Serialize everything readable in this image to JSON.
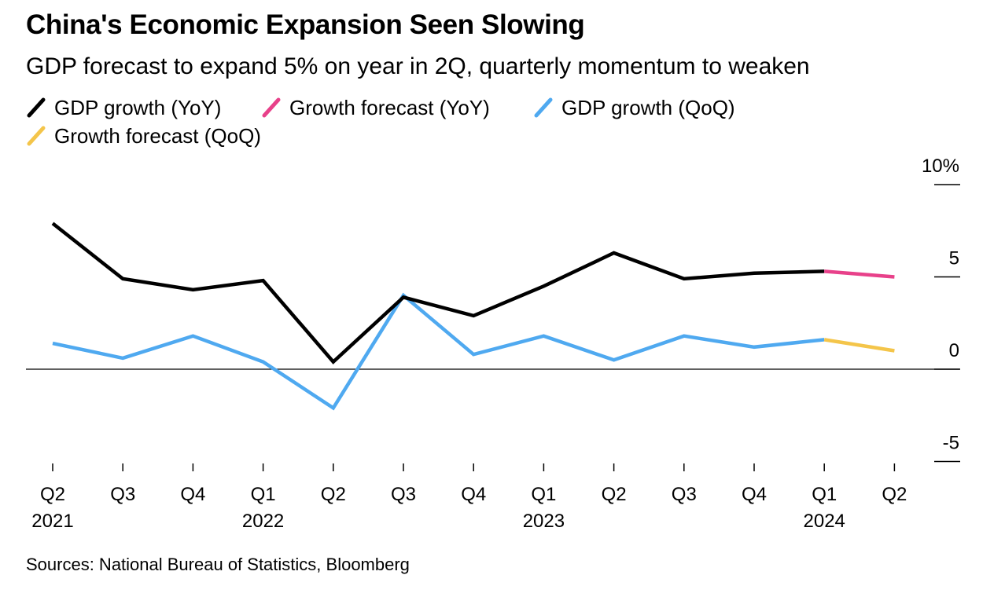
{
  "title": "China's Economic Expansion Seen Slowing",
  "subtitle": "GDP forecast to expand 5% on year in 2Q, quarterly momentum to weaken",
  "legend": [
    {
      "label": "GDP growth (YoY)",
      "color": "#000000"
    },
    {
      "label": "Growth forecast (YoY)",
      "color": "#e8418a"
    },
    {
      "label": "GDP growth (QoQ)",
      "color": "#4fa9f0"
    },
    {
      "label": "Growth forecast (QoQ)",
      "color": "#f4c54a"
    }
  ],
  "source": "Sources: National Bureau of Statistics, Bloomberg",
  "chart_data": {
    "type": "line",
    "categories": [
      "Q2 2021",
      "Q3 2021",
      "Q4 2021",
      "Q1 2022",
      "Q2 2022",
      "Q3 2022",
      "Q4 2022",
      "Q1 2023",
      "Q2 2023",
      "Q3 2023",
      "Q4 2023",
      "Q1 2024",
      "Q2 2024"
    ],
    "x_tick_labels": [
      {
        "quarter": "Q2",
        "year": "2021"
      },
      {
        "quarter": "Q3",
        "year": ""
      },
      {
        "quarter": "Q4",
        "year": ""
      },
      {
        "quarter": "Q1",
        "year": "2022"
      },
      {
        "quarter": "Q2",
        "year": ""
      },
      {
        "quarter": "Q3",
        "year": ""
      },
      {
        "quarter": "Q4",
        "year": ""
      },
      {
        "quarter": "Q1",
        "year": "2023"
      },
      {
        "quarter": "Q2",
        "year": ""
      },
      {
        "quarter": "Q3",
        "year": ""
      },
      {
        "quarter": "Q4",
        "year": ""
      },
      {
        "quarter": "Q1",
        "year": "2024"
      },
      {
        "quarter": "Q2",
        "year": ""
      }
    ],
    "series": [
      {
        "name": "GDP growth (YoY)",
        "color": "#000000",
        "values": [
          7.9,
          4.9,
          4.3,
          4.8,
          0.4,
          3.9,
          2.9,
          4.5,
          6.3,
          4.9,
          5.2,
          5.3,
          null
        ]
      },
      {
        "name": "Growth forecast (YoY)",
        "color": "#e8418a",
        "values": [
          null,
          null,
          null,
          null,
          null,
          null,
          null,
          null,
          null,
          null,
          null,
          5.3,
          5.0
        ]
      },
      {
        "name": "GDP growth (QoQ)",
        "color": "#4fa9f0",
        "values": [
          1.4,
          0.6,
          1.8,
          0.4,
          -2.1,
          4.0,
          0.8,
          1.8,
          0.5,
          1.8,
          1.2,
          1.6,
          null
        ]
      },
      {
        "name": "Growth forecast (QoQ)",
        "color": "#f4c54a",
        "values": [
          null,
          null,
          null,
          null,
          null,
          null,
          null,
          null,
          null,
          null,
          null,
          1.6,
          1.0
        ]
      }
    ],
    "y_ticks": [
      {
        "value": 10,
        "label": "10%"
      },
      {
        "value": 5,
        "label": "5"
      },
      {
        "value": 0,
        "label": "0"
      },
      {
        "value": -5,
        "label": "-5"
      }
    ],
    "ylim": [
      -5,
      10
    ],
    "zero_line": true,
    "grid": false,
    "legend_position": "top-left"
  }
}
